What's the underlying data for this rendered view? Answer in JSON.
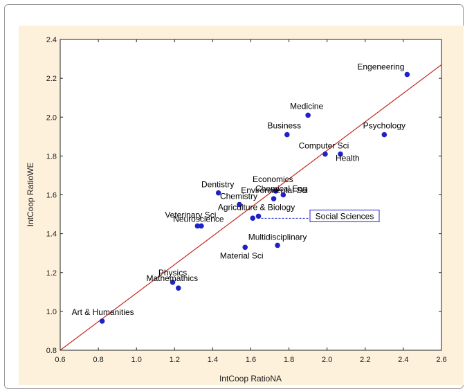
{
  "chart_data": {
    "type": "scatter",
    "xlabel": "IntCoop RatioNA",
    "ylabel": "IntCoop RatioWE",
    "xlim": [
      0.6,
      2.6
    ],
    "ylim": [
      0.8,
      2.4
    ],
    "xticks": [
      "0.6",
      "0.8",
      "1.0",
      "1.2",
      "1.4",
      "1.6",
      "1.8",
      "2.0",
      "2.2",
      "2.4",
      "2.6"
    ],
    "yticks": [
      "0.8",
      "1.0",
      "1.2",
      "1.4",
      "1.6",
      "1.8",
      "2.0",
      "2.2",
      "2.4"
    ],
    "grid": false,
    "fit_line": {
      "x": [
        0.6,
        2.6
      ],
      "y": [
        0.8,
        2.27
      ]
    },
    "colors": {
      "point": "#1f22c8",
      "fit_line": "#c2281e",
      "panel": "#fdf1dc",
      "callout": "#1f22c8"
    },
    "points": [
      {
        "label": "Engeneering",
        "x": 2.42,
        "y": 2.22
      },
      {
        "label": "Medicine",
        "x": 1.9,
        "y": 2.01
      },
      {
        "label": "Business",
        "x": 1.79,
        "y": 1.91
      },
      {
        "label": "Psychology",
        "x": 2.3,
        "y": 1.91
      },
      {
        "label": "Computer Sci",
        "x": 1.99,
        "y": 1.81
      },
      {
        "label": "Health",
        "x": 2.07,
        "y": 1.81
      },
      {
        "label": "Economics",
        "x": 1.73,
        "y": 1.62
      },
      {
        "label": "Chemical Eng",
        "x": 1.77,
        "y": 1.6
      },
      {
        "label": "Dentistry",
        "x": 1.43,
        "y": 1.61
      },
      {
        "label": "Chemistry",
        "x": 1.54,
        "y": 1.55
      },
      {
        "label": "Environmental Sci",
        "x": 1.72,
        "y": 1.58
      },
      {
        "label": "Agriculture & Biology",
        "x": 1.64,
        "y": 1.49
      },
      {
        "label": "Social Sciences",
        "x": 1.61,
        "y": 1.48
      },
      {
        "label": "Veterinary Sci",
        "x": 1.32,
        "y": 1.44
      },
      {
        "label": "Neuroscience",
        "x": 1.34,
        "y": 1.44
      },
      {
        "label": "Multidisciplinary",
        "x": 1.74,
        "y": 1.34
      },
      {
        "label": "Material Sci",
        "x": 1.57,
        "y": 1.33
      },
      {
        "label": "Physics",
        "x": 1.19,
        "y": 1.15
      },
      {
        "label": "Mathemathics",
        "x": 1.22,
        "y": 1.12
      },
      {
        "label": "Art & Humanities",
        "x": 0.82,
        "y": 0.95
      }
    ],
    "callout": {
      "label": "Social Sciences",
      "x": 1.64,
      "y": 1.49
    }
  }
}
